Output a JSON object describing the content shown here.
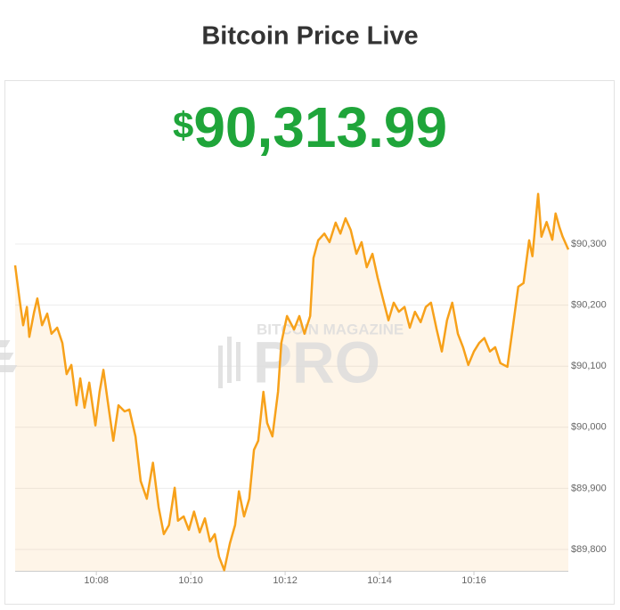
{
  "header": {
    "title": "Bitcoin Price Live",
    "price_symbol": "$",
    "price": "90,313.99"
  },
  "watermark": [
    "BITCOIN MAGAZINE",
    "PRO"
  ],
  "chart_data": {
    "type": "line",
    "x": [
      606.28,
      606.37,
      606.45,
      606.53,
      606.58,
      606.68,
      606.75,
      606.85,
      606.96,
      607.05,
      607.17,
      607.28,
      607.37,
      607.47,
      607.58,
      607.66,
      607.75,
      607.85,
      607.98,
      608.07,
      608.15,
      608.24,
      608.36,
      608.47,
      608.6,
      608.7,
      608.83,
      608.94,
      609.07,
      609.2,
      609.32,
      609.43,
      609.54,
      609.66,
      609.73,
      609.85,
      609.96,
      610.07,
      610.19,
      610.3,
      610.41,
      610.51,
      610.6,
      610.71,
      610.83,
      610.94,
      611.02,
      611.13,
      611.24,
      611.34,
      611.43,
      611.54,
      611.62,
      611.73,
      611.85,
      611.92,
      612.04,
      612.19,
      612.3,
      612.41,
      612.53,
      612.6,
      612.7,
      612.83,
      612.94,
      613.07,
      613.17,
      613.28,
      613.39,
      613.51,
      613.62,
      613.73,
      613.85,
      613.96,
      614.07,
      614.19,
      614.3,
      614.41,
      614.53,
      614.64,
      614.75,
      614.87,
      614.98,
      615.09,
      615.21,
      615.32,
      615.43,
      615.54,
      615.66,
      615.77,
      615.88,
      616.0,
      616.11,
      616.22,
      616.34,
      616.45,
      616.56,
      616.71,
      616.83,
      616.94,
      617.05,
      617.17,
      617.24,
      617.36,
      617.43,
      617.54,
      617.66,
      617.73,
      617.81,
      617.88,
      618.0
    ],
    "series": [
      {
        "color": "#f7a11a",
        "values": [
          90265,
          90211,
          90167,
          90197,
          90148,
          90188,
          90211,
          90167,
          90186,
          90153,
          90163,
          90138,
          90087,
          90102,
          90036,
          90080,
          90032,
          90073,
          90003,
          90058,
          90094,
          90043,
          89978,
          90036,
          90026,
          90029,
          89985,
          89912,
          89883,
          89942,
          89869,
          89825,
          89840,
          89901,
          89847,
          89854,
          89832,
          89862,
          89828,
          89851,
          89813,
          89825,
          89788,
          89766,
          89810,
          89840,
          89895,
          89854,
          89883,
          89963,
          89978,
          90058,
          90007,
          89985,
          90058,
          90138,
          90182,
          90160,
          90182,
          90153,
          90182,
          90277,
          90306,
          90317,
          90303,
          90335,
          90317,
          90342,
          90323,
          90284,
          90303,
          90262,
          90284,
          90245,
          90211,
          90175,
          90204,
          90189,
          90197,
          90163,
          90189,
          90172,
          90197,
          90204,
          90160,
          90124,
          90175,
          90204,
          90153,
          90131,
          90102,
          90124,
          90138,
          90146,
          90124,
          90131,
          90105,
          90099,
          90167,
          90230,
          90236,
          90306,
          90280,
          90382,
          90312,
          90336,
          90307,
          90350,
          90328,
          90312,
          90291
        ]
      }
    ],
    "xlim": [
      606.28,
      618.0
    ],
    "xticks": [
      {
        "value": 608,
        "label": "10:08"
      },
      {
        "value": 610,
        "label": "10:10"
      },
      {
        "value": 612,
        "label": "10:12"
      },
      {
        "value": 614,
        "label": "10:14"
      },
      {
        "value": 616,
        "label": "10:16"
      }
    ],
    "ylim": [
      89765,
      90400
    ],
    "yticks": [
      {
        "value": 89800,
        "label": "$89,800"
      },
      {
        "value": 89900,
        "label": "$89,900"
      },
      {
        "value": 90000,
        "label": "$90,000"
      },
      {
        "value": 90100,
        "label": "$90,100"
      },
      {
        "value": 90200,
        "label": "$90,200"
      },
      {
        "value": 90300,
        "label": "$90,300"
      }
    ],
    "grid": true
  }
}
